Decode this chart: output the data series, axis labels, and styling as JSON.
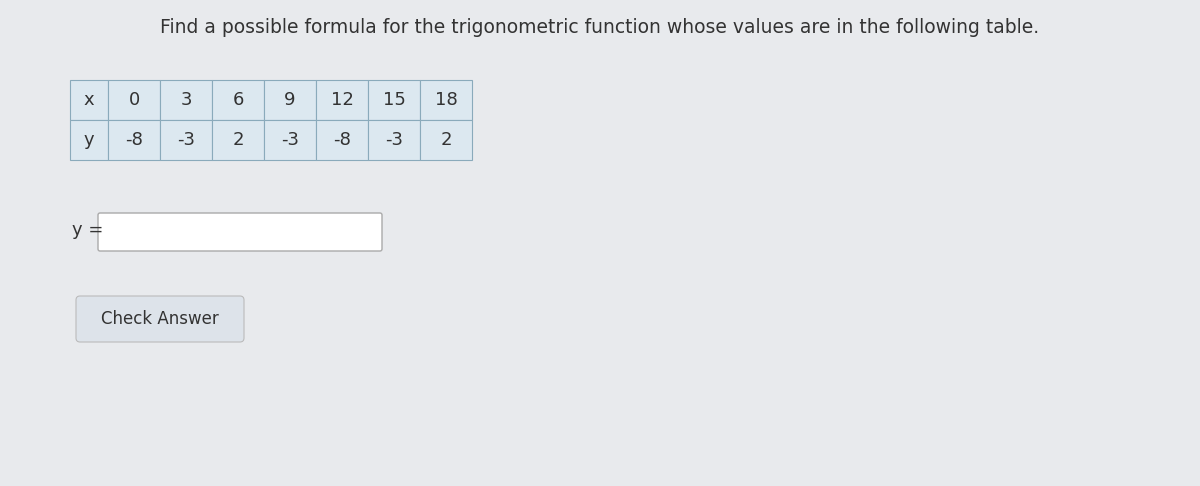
{
  "title": "Find a possible formula for the trigonometric function whose values are in the following table.",
  "title_fontsize": 13.5,
  "title_color": "#333333",
  "background_color": "#e8eaed",
  "table_header_bg": "#dce8f0",
  "table_cell_bg": "#dce8f0",
  "x_label": "x",
  "y_label": "y",
  "x_values": [
    0,
    3,
    6,
    9,
    12,
    15,
    18
  ],
  "y_values": [
    -8,
    -3,
    2,
    -3,
    -8,
    -3,
    2
  ],
  "input_label": "y =",
  "button_label": "Check Answer",
  "table_border_color": "#8aaabb",
  "text_color": "#333333",
  "button_bg": "#dde3ea",
  "button_border": "#bbbbbb",
  "input_box_color": "#ffffff",
  "input_border_color": "#aaaaaa"
}
